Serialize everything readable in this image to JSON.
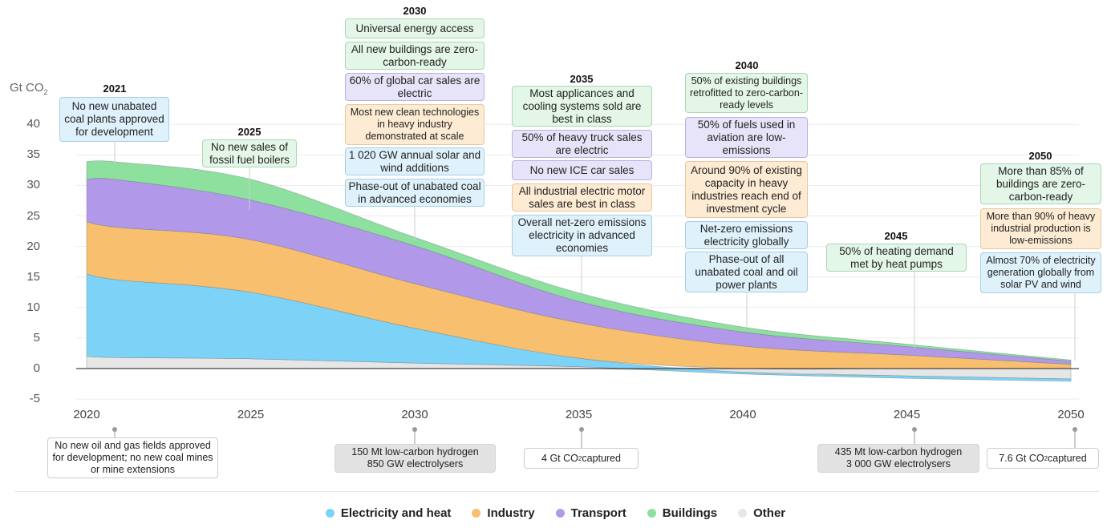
{
  "chart_data": {
    "type": "area",
    "stacked": true,
    "ylabel": "Gt CO2",
    "ylim": [
      -5,
      40
    ],
    "yticks": [
      40,
      35,
      30,
      25,
      20,
      15,
      10,
      5,
      0,
      -5
    ],
    "xticks": [
      2020,
      2025,
      2030,
      2035,
      2040,
      2045,
      2050
    ],
    "grid": true,
    "legend_position": "bottom",
    "x": [
      2020,
      2021,
      2025,
      2030,
      2035,
      2040,
      2045,
      2050
    ],
    "series": [
      {
        "name": "Other",
        "color": "#e6e6e6",
        "values": [
          2.0,
          1.8,
          1.6,
          0.9,
          0.3,
          -0.6,
          -1.2,
          -1.7
        ]
      },
      {
        "name": "Electricity and heat",
        "color": "#7dd3f7",
        "values": [
          13.5,
          12.7,
          10.9,
          5.7,
          1.4,
          -0.3,
          -0.4,
          -0.4
        ]
      },
      {
        "name": "Industry",
        "color": "#f7bf6e",
        "values": [
          8.5,
          8.6,
          8.6,
          7.3,
          5.8,
          3.7,
          2.2,
          0.7
        ]
      },
      {
        "name": "Transport",
        "color": "#b198e9",
        "values": [
          7.0,
          7.8,
          6.5,
          6.2,
          3.5,
          2.3,
          1.4,
          0.5
        ]
      },
      {
        "name": "Buildings",
        "color": "#8ee09f",
        "values": [
          2.9,
          2.9,
          3.4,
          1.4,
          1.4,
          0.8,
          0.4,
          0.2
        ]
      }
    ],
    "legend": [
      "Electricity and heat",
      "Industry",
      "Transport",
      "Buildings",
      "Other"
    ],
    "milestones_top": [
      {
        "year": "2021",
        "items": [
          {
            "text": "No new unabated coal plants approved for development",
            "sector": "electricity"
          }
        ]
      },
      {
        "year": "2025",
        "items": [
          {
            "text": "No new sales of fossil fuel boilers",
            "sector": "buildings"
          }
        ]
      },
      {
        "year": "2030",
        "items": [
          {
            "text": "Universal energy access",
            "sector": "buildings"
          },
          {
            "text": "All new buildings are zero-carbon-ready",
            "sector": "buildings"
          },
          {
            "text": "60% of global car sales are electric",
            "sector": "transport"
          },
          {
            "text": "Most new clean technologies in heavy industry demonstrated at scale",
            "sector": "industry"
          },
          {
            "text": "1 020 GW annual solar and wind additions",
            "sector": "electricity"
          },
          {
            "text": "Phase-out of unabated coal in advanced economies",
            "sector": "electricity"
          }
        ]
      },
      {
        "year": "2035",
        "items": [
          {
            "text": "Most applicances and cooling systems sold are best in class",
            "sector": "buildings"
          },
          {
            "text": "50% of heavy truck sales are electric",
            "sector": "transport"
          },
          {
            "text": "No new ICE car sales",
            "sector": "transport"
          },
          {
            "text": "All industrial electric motor sales are best in class",
            "sector": "industry"
          },
          {
            "text": "Overall net-zero emissions electricity in advanced economies",
            "sector": "electricity"
          }
        ]
      },
      {
        "year": "2040",
        "items": [
          {
            "text": "50% of existing buildings retrofitted to zero-carbon-ready levels",
            "sector": "buildings"
          },
          {
            "text": "50% of fuels used in aviation are low-emissions",
            "sector": "transport"
          },
          {
            "text": "Around 90% of existing capacity in heavy industries reach end of investment cycle",
            "sector": "industry"
          },
          {
            "text": "Net-zero emissions electricity globally",
            "sector": "electricity"
          },
          {
            "text": "Phase-out of all unabated coal and oil power plants",
            "sector": "electricity"
          }
        ]
      },
      {
        "year": "2045",
        "items": [
          {
            "text": "50% of heating demand met by heat pumps",
            "sector": "buildings"
          }
        ]
      },
      {
        "year": "2050",
        "items": [
          {
            "text": "More than 85% of buildings are zero-carbon-ready",
            "sector": "buildings"
          },
          {
            "text": "More than 90% of heavy industrial production is low-emissions",
            "sector": "industry"
          },
          {
            "text": "Almost 70% of electricity generation globally from solar PV and wind",
            "sector": "electricity"
          }
        ]
      }
    ],
    "milestones_bottom": [
      {
        "year": "2020",
        "text": "No new oil and gas fields approved for development; no new coal mines or mine extensions",
        "style": "white"
      },
      {
        "year": "2030",
        "text": "150 Mt low-carbon hydrogen\n850 GW electrolysers",
        "style": "gray"
      },
      {
        "year": "2035",
        "text": "4 Gt CO2 captured",
        "style": "white"
      },
      {
        "year": "2045",
        "text": "435 Mt low-carbon hydrogen\n3 000 GW electrolysers",
        "style": "gray"
      },
      {
        "year": "2050",
        "text": "7.6 Gt CO2 captured",
        "style": "white"
      }
    ]
  }
}
